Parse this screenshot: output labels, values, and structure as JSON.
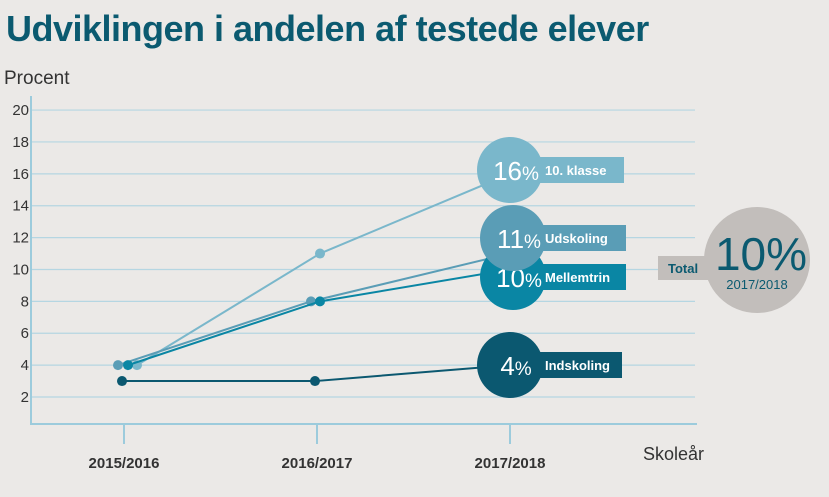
{
  "title": "Udviklingen i andelen af testede elever",
  "chart_data": {
    "type": "line",
    "title": "Udviklingen i andelen af testede elever",
    "ylabel": "Procent",
    "xlabel": "Skoleår",
    "categories": [
      "2015/2016",
      "2016/2017",
      "2017/2018"
    ],
    "yticks": [
      2,
      4,
      6,
      8,
      10,
      12,
      14,
      16,
      18,
      20
    ],
    "ylim": [
      0,
      20
    ],
    "grid": true,
    "series": [
      {
        "name": "10. klasse",
        "values": [
          4,
          11,
          16
        ],
        "end_label": "16",
        "color": "#7ab7cb"
      },
      {
        "name": "Udskoling",
        "values": [
          4,
          8,
          11
        ],
        "end_label": "11",
        "color": "#5a9db6"
      },
      {
        "name": "Mellemtrin",
        "values": [
          4,
          8,
          10
        ],
        "end_label": "10",
        "color": "#0a86a4"
      },
      {
        "name": "Indskoling",
        "values": [
          3,
          3,
          4
        ],
        "end_label": "4",
        "color": "#0b5870"
      }
    ],
    "total": {
      "label": "Total",
      "value": "10%",
      "year": "2017/2018",
      "color": "#c2bebb",
      "text_color": "#0b5a70"
    }
  }
}
